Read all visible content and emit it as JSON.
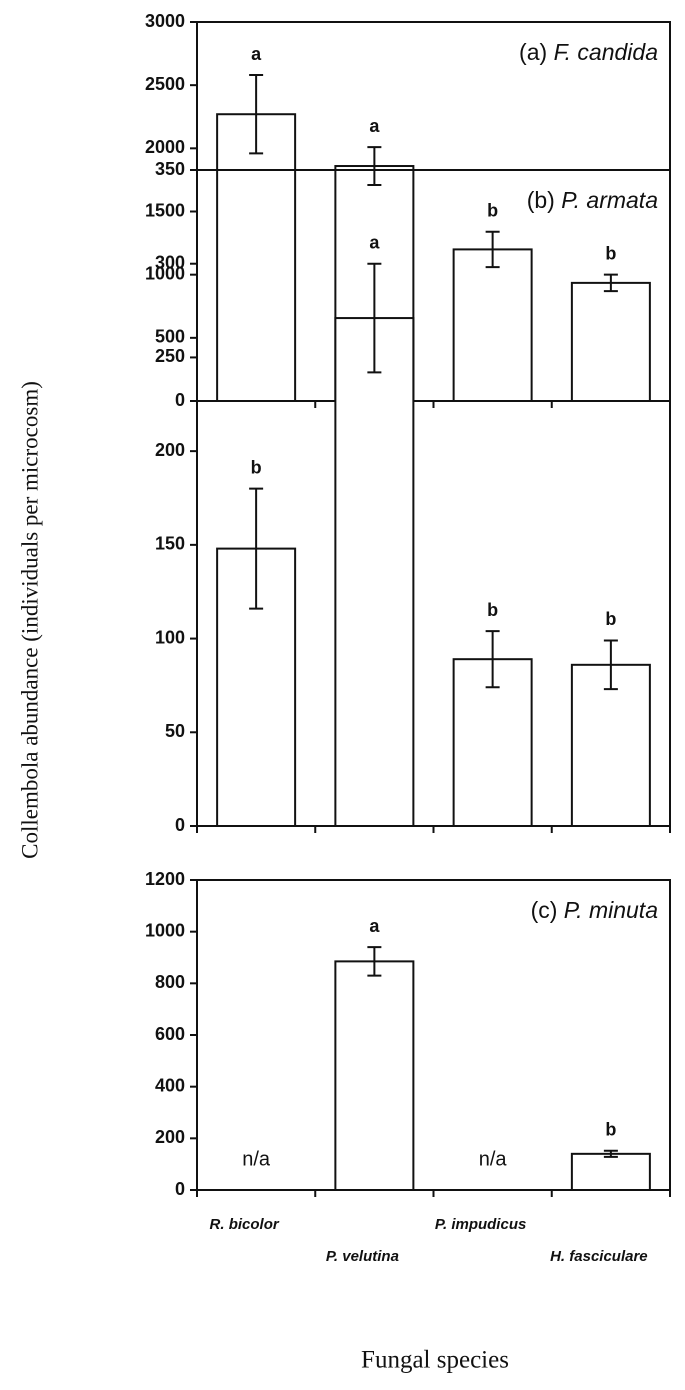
{
  "ylabel": "Collembola abundance  (individuals per microcosm)",
  "xlabel": "Fungal species",
  "chart_data": [
    {
      "type": "bar",
      "panel": "(a)",
      "title": "F. candida",
      "values": [
        2270,
        1860,
        1200,
        935
      ],
      "errors": [
        310,
        150,
        140,
        65
      ],
      "letters": [
        "a",
        "a",
        "b",
        "b"
      ],
      "color": "#ffffff",
      "ylim": [
        0,
        3000
      ],
      "yticks": [
        0,
        500,
        1000,
        1500,
        2000,
        2500,
        3000
      ]
    },
    {
      "type": "bar",
      "panel": "(b)",
      "title": "P. armata",
      "values": [
        148,
        271,
        89,
        86
      ],
      "errors": [
        32,
        29,
        15,
        13
      ],
      "letters": [
        "b",
        "a",
        "b",
        "b"
      ],
      "color": "#ffffff",
      "ylim": [
        0,
        350
      ],
      "yticks": [
        0,
        50,
        100,
        150,
        200,
        250,
        300,
        350
      ]
    },
    {
      "type": "bar",
      "panel": "(c)",
      "title": "P. minuta",
      "categories": [
        "R. bicolor",
        "P. velutina",
        "P. impudicus",
        "H. fasciculare"
      ],
      "values": [
        null,
        885,
        null,
        140
      ],
      "errors": [
        null,
        55,
        null,
        12
      ],
      "letters": [
        "n/a",
        "a",
        "n/a",
        "b"
      ],
      "color": "#ffffff",
      "ylim": [
        0,
        1200
      ],
      "yticks": [
        0,
        200,
        400,
        600,
        800,
        1000,
        1200
      ]
    }
  ]
}
